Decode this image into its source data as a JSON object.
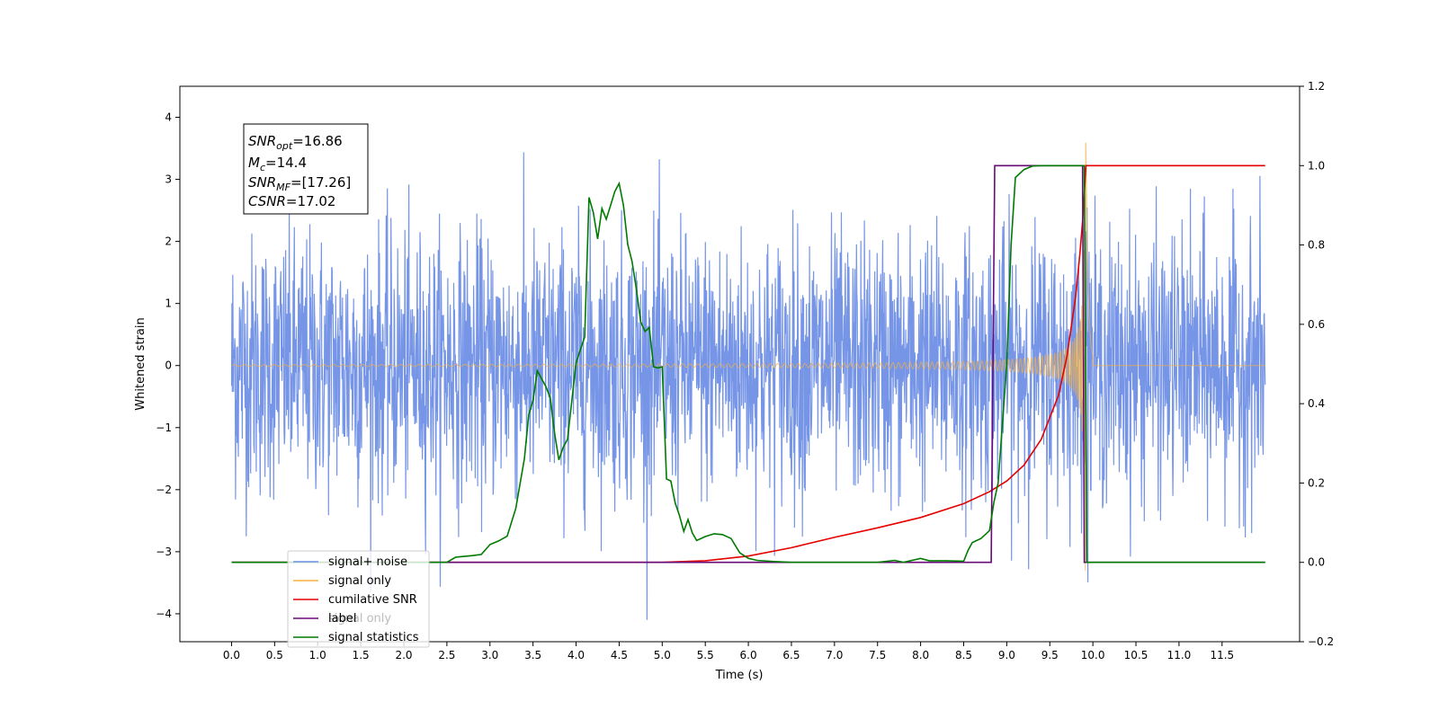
{
  "chart_data": {
    "type": "line",
    "title": "",
    "xlabel": "Time (s)",
    "ylabel": "Whitened strain",
    "y2label": "",
    "xlim": [
      -0.6,
      12.4
    ],
    "ylim": [
      -4.45,
      4.5
    ],
    "y2lim": [
      -0.2,
      1.2
    ],
    "x_ticks": [
      "0.0",
      "0.5",
      "1.0",
      "1.5",
      "2.0",
      "2.5",
      "3.0",
      "3.5",
      "4.0",
      "4.5",
      "5.0",
      "5.5",
      "6.0",
      "6.5",
      "7.0",
      "7.5",
      "8.0",
      "8.5",
      "9.0",
      "9.5",
      "10.0",
      "10.5",
      "11.0",
      "11.5"
    ],
    "y_ticks": [
      "−4",
      "−3",
      "−2",
      "−1",
      "0",
      "1",
      "2",
      "3",
      "4"
    ],
    "y2_ticks": [
      "−0.2",
      "0.0",
      "0.2",
      "0.4",
      "0.6",
      "0.8",
      "1.0",
      "1.2"
    ],
    "grid": false,
    "legend_position": "lower-left",
    "annotation": {
      "lines": [
        {
          "sym": "SNR",
          "sub": "opt",
          "val": "=16.86"
        },
        {
          "sym": "M",
          "sub": "c",
          "val": "=14.4"
        },
        {
          "sym": "SNR",
          "sub": "MF",
          "val": "=[17.26]"
        },
        {
          "sym": "CSNR",
          "sub": "",
          "val": "=17.02"
        }
      ]
    },
    "series": [
      {
        "name": "signal+ noise",
        "color": "#6f8fe6",
        "axis": "left",
        "kind": "noise",
        "x_range": [
          0.0,
          12.0
        ],
        "amplitude_sd": 1.0
      },
      {
        "name": "signal only",
        "color": "#f5b041",
        "axis": "left",
        "kind": "chirp",
        "merger_time": 9.92,
        "peak_amplitude": 3.6
      },
      {
        "name": "cumilative SNR",
        "color": "#e60000",
        "axis": "right",
        "x": [
          0.0,
          5.0,
          5.5,
          6.0,
          6.5,
          7.0,
          7.5,
          8.0,
          8.5,
          8.8,
          9.0,
          9.2,
          9.4,
          9.6,
          9.7,
          9.8,
          9.85,
          9.88,
          9.9,
          9.92,
          9.95,
          12.0
        ],
        "y": [
          0.0,
          0.0,
          0.004,
          0.016,
          0.037,
          0.063,
          0.087,
          0.113,
          0.148,
          0.178,
          0.205,
          0.245,
          0.31,
          0.42,
          0.52,
          0.67,
          0.78,
          0.86,
          0.93,
          1.0,
          1.0,
          1.0
        ]
      },
      {
        "name": "label",
        "color": "#6a0a78",
        "axis": "right",
        "x": [
          0.0,
          8.82,
          8.86,
          9.88,
          9.9,
          12.0
        ],
        "y": [
          0.0,
          0.0,
          1.0,
          1.0,
          0.0,
          0.0
        ]
      },
      {
        "name": "signal statistics",
        "color": "#007a00",
        "axis": "right",
        "x": [
          0.0,
          2.5,
          2.6,
          2.8,
          2.9,
          3.0,
          3.1,
          3.2,
          3.3,
          3.4,
          3.45,
          3.5,
          3.55,
          3.65,
          3.7,
          3.75,
          3.8,
          3.85,
          3.9,
          4.0,
          4.05,
          4.1,
          4.15,
          4.2,
          4.25,
          4.3,
          4.35,
          4.4,
          4.45,
          4.5,
          4.55,
          4.6,
          4.65,
          4.7,
          4.75,
          4.8,
          4.85,
          4.9,
          4.95,
          5.0,
          5.05,
          5.1,
          5.15,
          5.2,
          5.25,
          5.3,
          5.35,
          5.4,
          5.5,
          5.6,
          5.7,
          5.8,
          5.9,
          6.0,
          6.1,
          6.3,
          6.5,
          7.5,
          7.7,
          7.8,
          8.0,
          8.1,
          8.3,
          8.5,
          8.55,
          8.6,
          8.7,
          8.8,
          8.85,
          8.9,
          9.0,
          9.05,
          9.1,
          9.2,
          9.3,
          9.4,
          9.5,
          9.6,
          9.7,
          9.8,
          9.9,
          9.93,
          12.0
        ],
        "y": [
          0.0,
          0.0,
          0.013,
          0.017,
          0.02,
          0.045,
          0.054,
          0.066,
          0.136,
          0.262,
          0.372,
          0.408,
          0.483,
          0.443,
          0.415,
          0.326,
          0.258,
          0.29,
          0.31,
          0.503,
          0.536,
          0.568,
          0.92,
          0.882,
          0.815,
          0.892,
          0.865,
          0.899,
          0.935,
          0.955,
          0.9,
          0.801,
          0.758,
          0.688,
          0.606,
          0.582,
          0.592,
          0.493,
          0.49,
          0.493,
          0.21,
          0.205,
          0.15,
          0.118,
          0.078,
          0.108,
          0.074,
          0.055,
          0.065,
          0.072,
          0.07,
          0.06,
          0.024,
          0.01,
          0.005,
          0.002,
          0.0,
          0.0,
          0.005,
          0.0,
          0.01,
          0.004,
          0.004,
          0.003,
          0.03,
          0.05,
          0.06,
          0.08,
          0.15,
          0.2,
          0.5,
          0.8,
          0.97,
          0.99,
          0.999,
          1.0,
          1.0,
          1.0,
          1.0,
          1.0,
          1.0,
          0.0,
          0.0
        ]
      }
    ],
    "hidden_legend_text": "signal only"
  }
}
